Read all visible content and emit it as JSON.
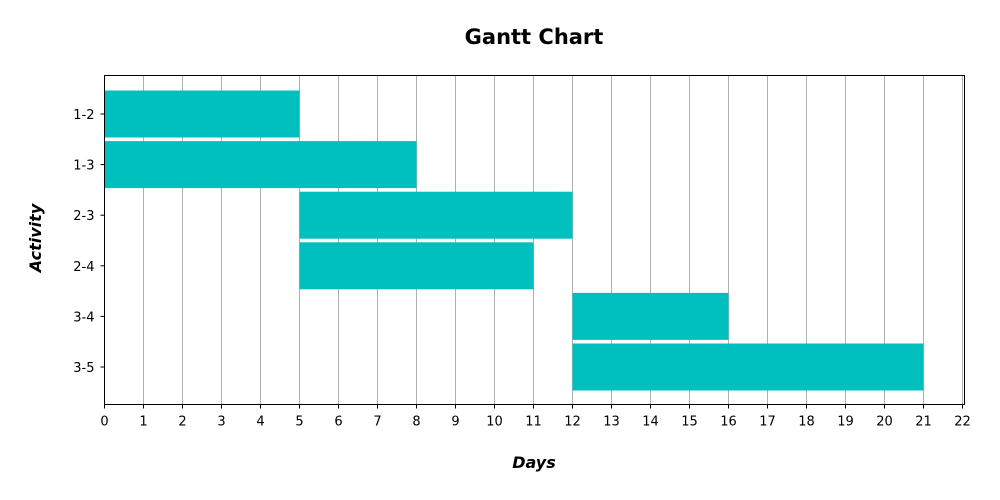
{
  "chart_data": {
    "type": "bar",
    "orientation": "horizontal",
    "title": "Gantt Chart",
    "xlabel": "Days",
    "ylabel": "Activity",
    "xlim": [
      0,
      22
    ],
    "xticks": [
      0,
      1,
      2,
      3,
      4,
      5,
      6,
      7,
      8,
      9,
      10,
      11,
      12,
      13,
      14,
      15,
      16,
      17,
      18,
      19,
      20,
      21,
      22
    ],
    "grid": "vertical",
    "bar_color": "#00bfbf",
    "tasks": [
      {
        "label": "1-2",
        "start": 0,
        "end": 5
      },
      {
        "label": "1-3",
        "start": 0,
        "end": 8
      },
      {
        "label": "2-3",
        "start": 5,
        "end": 12
      },
      {
        "label": "2-4",
        "start": 5,
        "end": 11
      },
      {
        "label": "3-4",
        "start": 12,
        "end": 16
      },
      {
        "label": "3-5",
        "start": 12,
        "end": 21
      }
    ]
  }
}
